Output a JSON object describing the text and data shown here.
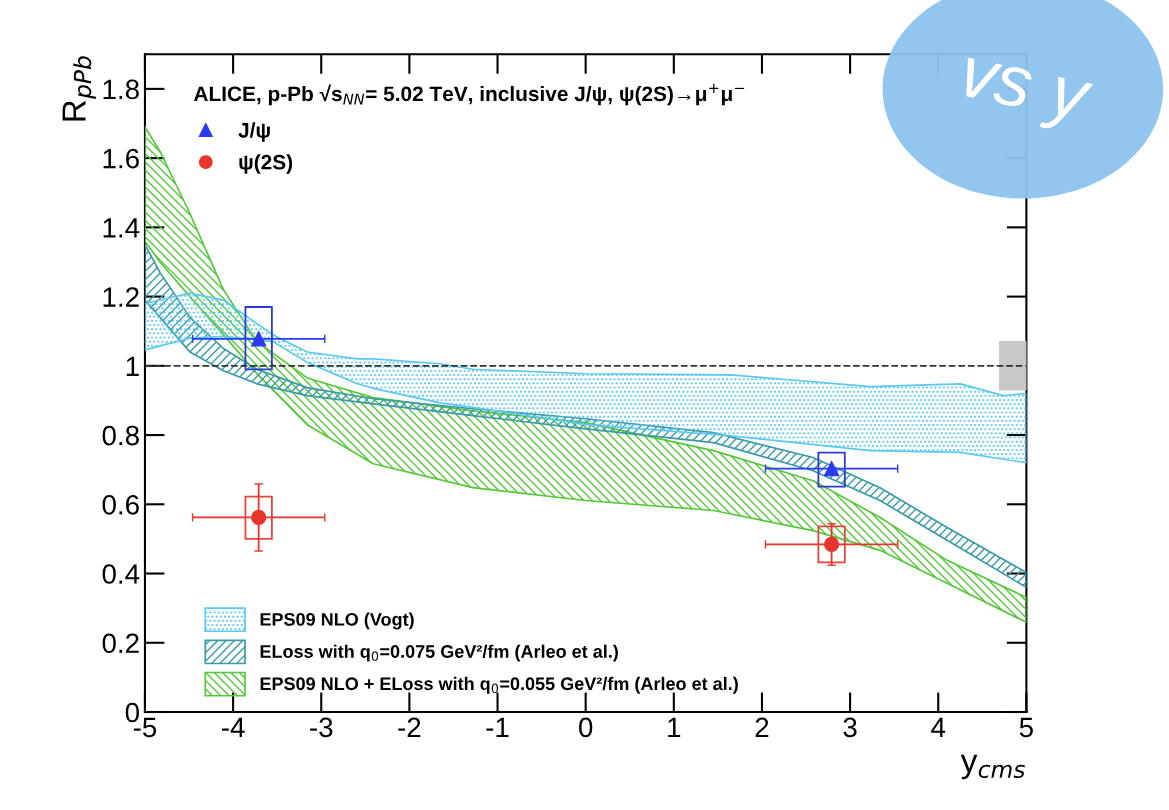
{
  "chart_data": {
    "type": "area",
    "title": "ALICE, p-Pb √s$_{NN}$= 5.02 TeV, inclusive J/ψ, ψ(2S)→μ$^{+}$μ$^{−}$",
    "xlabel": "y$_{cms}$",
    "ylabel": "R$_{pPb}$",
    "annotations": [
      "vs y"
    ],
    "xlim": [
      -5,
      5
    ],
    "ylim": [
      0,
      1.9
    ],
    "xticks": [
      -5,
      -4,
      -3,
      -2,
      -1,
      0,
      1,
      2,
      3,
      4,
      5
    ],
    "yticks": [
      0,
      0.2,
      0.4,
      0.6,
      0.8,
      1,
      1.2,
      1.4,
      1.6,
      1.8
    ],
    "grid": false,
    "legend": "bottom left",
    "ref_lines": [
      {
        "axis": "y",
        "value": 1,
        "label": null,
        "color": "#333333",
        "line_style": "dashed"
      }
    ],
    "series": [
      {
        "name": "EPS09 NLO (Vogt)",
        "color": "#5bc8f0",
        "x": [
          -5,
          -4.49,
          -4.11,
          -3.55,
          -3.16,
          -2.59,
          -2.41,
          -1.65,
          -1.28,
          0,
          1.64,
          3.23,
          4.25,
          4.74,
          5
        ],
        "values": [
          null,
          null,
          null,
          null,
          null,
          null,
          null,
          null,
          null,
          null,
          null,
          null,
          null,
          null,
          null
        ],
        "upper": [
          1.18,
          1.21,
          1.19,
          1.09,
          1.04,
          1.02,
          1.02,
          1.006,
          0.99,
          0.977,
          0.974,
          0.94,
          0.948,
          0.914,
          0.92
        ],
        "lower": [
          1.046,
          1.08,
          1.085,
          1.07,
          1.01,
          0.948,
          0.935,
          0.893,
          0.88,
          0.83,
          0.798,
          0.755,
          0.75,
          0.73,
          0.72
        ]
      },
      {
        "name": "ELoss with q$_{0}$=0.075 GeV²/fm (Arleo et al.)",
        "color": "#3a9aa8",
        "x": [
          -5,
          -4.83,
          -4.49,
          -4.11,
          -3.73,
          -3.16,
          -2.41,
          -1.28,
          0,
          1.45,
          2.58,
          3.34,
          4.1,
          5
        ],
        "values": [
          null,
          null,
          null,
          null,
          null,
          null,
          null,
          null,
          null,
          null,
          null,
          null,
          null,
          null
        ],
        "upper": [
          1.35,
          1.27,
          1.14,
          1.05,
          0.99,
          0.937,
          0.905,
          0.876,
          0.847,
          0.807,
          0.735,
          0.648,
          0.533,
          0.403
        ],
        "lower": [
          1.19,
          1.14,
          1.04,
          0.986,
          0.948,
          0.914,
          0.89,
          0.856,
          0.818,
          0.778,
          0.697,
          0.611,
          0.496,
          0.36
        ]
      },
      {
        "name": "EPS09 NLO + ELoss with q$_{0}$=0.055 GeV²/fm (Arleo et al.)",
        "color": "#55c83a",
        "x": [
          -5,
          -4.83,
          -4.49,
          -4.11,
          -3.73,
          -3.16,
          -2.41,
          -1.28,
          0,
          1.45,
          2.58,
          3.34,
          4.1,
          5
        ],
        "values": [
          null,
          null,
          null,
          null,
          null,
          null,
          null,
          null,
          null,
          null,
          null,
          null,
          null,
          null
        ],
        "upper": [
          1.69,
          1.62,
          1.44,
          1.22,
          1.07,
          0.965,
          0.908,
          0.87,
          0.836,
          0.755,
          0.668,
          0.562,
          0.438,
          0.331
        ],
        "lower": [
          1.36,
          1.3,
          1.2,
          1.09,
          0.977,
          0.83,
          0.717,
          0.648,
          0.611,
          0.582,
          0.524,
          0.467,
          0.372,
          0.259
        ]
      },
      {
        "type": "bar",
        "color": "#2b3bd6",
        "x": [
          -3.71,
          2.79
        ],
        "base": [
          0.99,
          0.651
        ],
        "values": [
          0.18,
          0.098
        ]
      },
      {
        "type": "bar",
        "color": "#e8453c",
        "x": [
          -3.71,
          2.79
        ],
        "base": [
          0.5,
          0.432
        ],
        "values": [
          0.122,
          0.104
        ]
      },
      {
        "type": "bar",
        "color": "#c8c8c8",
        "x": [
          4.85
        ],
        "base": [
          0.931
        ],
        "values": [
          0.138
        ]
      },
      {
        "name": "J/ψ",
        "type": "scatter",
        "marker": "triangle",
        "color": "#2b3bf0",
        "x": [
          -3.71,
          2.79
        ],
        "values": [
          1.078,
          0.703
        ],
        "xerrors": [
          0.75,
          0.75
        ]
      },
      {
        "name": "ψ(2S)",
        "type": "scatter",
        "marker": "circle",
        "color": "#e8352c",
        "x": [
          -3.71,
          2.79
        ],
        "values": [
          0.562,
          0.484
        ],
        "errors": [
          0.097,
          0.06
        ],
        "xerrors": [
          0.75,
          0.75
        ]
      }
    ]
  }
}
